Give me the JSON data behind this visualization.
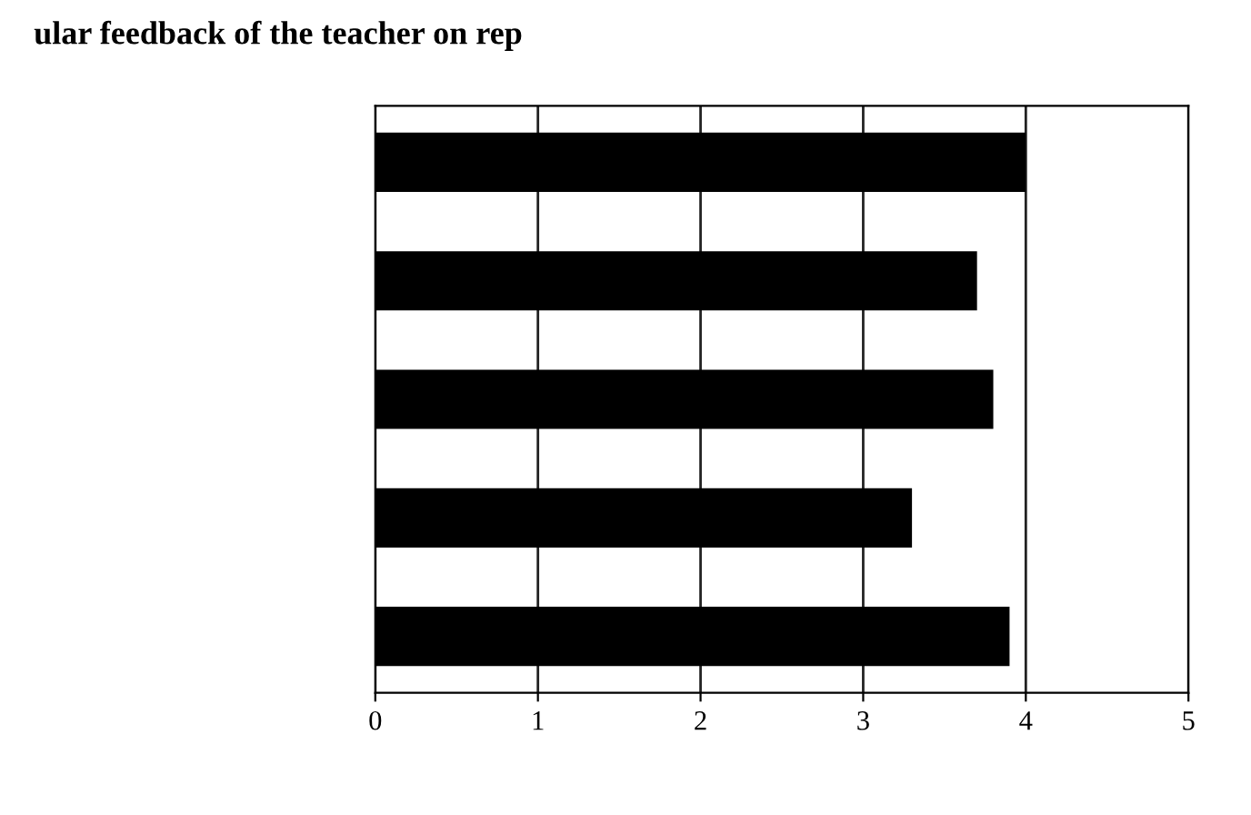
{
  "chart_data": {
    "type": "bar",
    "orientation": "horizontal",
    "title": "ular feedback of the teacher on rep",
    "categories": [
      null,
      null,
      null,
      null,
      null
    ],
    "values": [
      4.0,
      3.7,
      3.8,
      3.3,
      3.9
    ],
    "color": "#000000",
    "xlim": [
      0,
      5
    ],
    "xticks": [
      0,
      1,
      2,
      3,
      4,
      5
    ],
    "grid": "x"
  }
}
